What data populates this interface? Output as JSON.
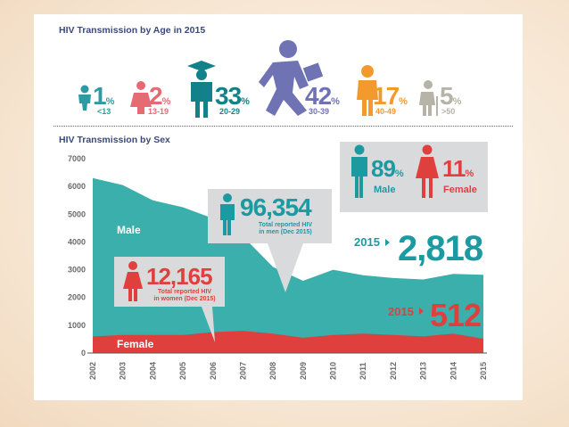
{
  "age_section": {
    "title": "HIV Transmission by Age in 2015",
    "groups": [
      {
        "pct": "1",
        "range": "<13",
        "color": "#2f9aa3"
      },
      {
        "pct": "2",
        "range": "13-19",
        "color": "#e56a72"
      },
      {
        "pct": "33",
        "range": "20-29",
        "color": "#13818a"
      },
      {
        "pct": "42",
        "range": "30-39",
        "color": "#6f73b4"
      },
      {
        "pct": "17",
        "range": "40-49",
        "color": "#f39a2f"
      },
      {
        "pct": "5",
        "range": ">50",
        "color": "#b5b4a6"
      }
    ],
    "pct_symbol": "%"
  },
  "sex_section": {
    "title": "HIV Transmission by Sex",
    "male_share": {
      "value": "89",
      "label": "Male"
    },
    "female_share": {
      "value": "11",
      "label": "Female"
    },
    "men_callout": {
      "number": "96,354",
      "line1": "Total reported HIV",
      "line2": "in men (Dec 2015)"
    },
    "women_callout": {
      "number": "12,165",
      "line1": "Total reported HIV",
      "line2": "in women (Dec 2015)"
    },
    "male_2015": {
      "year": "2015",
      "value": "2,818"
    },
    "female_2015": {
      "year": "2015",
      "value": "512"
    }
  },
  "colors": {
    "male_area": "#3aafab",
    "female_area": "#e0403d",
    "teal_text": "#1b9aa2",
    "red_text": "#e0403d",
    "callout_bg": "#d9dadc"
  },
  "chart_data": {
    "type": "area",
    "title": "HIV Transmission by Sex",
    "x": [
      "2002",
      "2003",
      "2004",
      "2005",
      "2006",
      "2007",
      "2008",
      "2009",
      "2010",
      "2011",
      "2012",
      "2013",
      "2014",
      "2015"
    ],
    "series": [
      {
        "name": "Male",
        "values": [
          6300,
          6050,
          5500,
          5250,
          4850,
          4200,
          3100,
          2600,
          3000,
          2800,
          2700,
          2650,
          2850,
          2818
        ]
      },
      {
        "name": "Female",
        "values": [
          600,
          650,
          650,
          650,
          750,
          800,
          700,
          550,
          650,
          700,
          650,
          600,
          700,
          512
        ]
      }
    ],
    "stacked": false,
    "ylim": [
      0,
      7000
    ],
    "y_ticks": [
      "0",
      "1000",
      "2000",
      "3000",
      "4000",
      "5000",
      "6000",
      "7000"
    ],
    "grid": false
  }
}
